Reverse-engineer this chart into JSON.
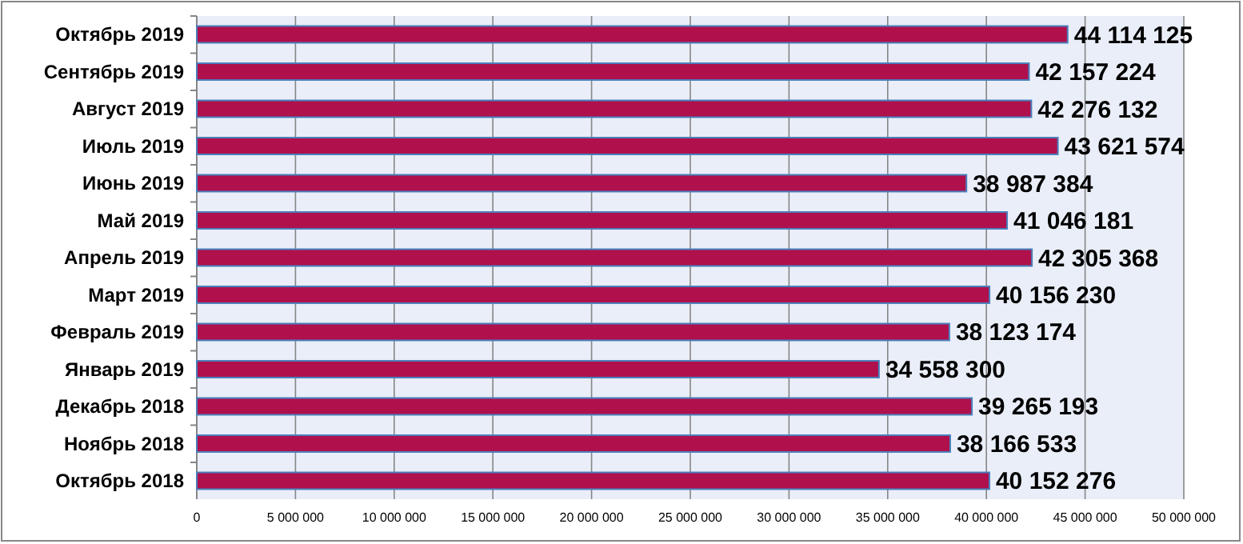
{
  "chart_data": {
    "type": "bar",
    "orientation": "horizontal",
    "categories": [
      "Октябрь 2019",
      "Сентябрь 2019",
      "Август 2019",
      "Июль 2019",
      "Июнь 2019",
      "Май 2019",
      "Апрель 2019",
      "Март 2019",
      "Февраль 2019",
      "Январь 2019",
      "Декабрь 2018",
      "Ноябрь 2018",
      "Октябрь 2018"
    ],
    "values": [
      44114125,
      42157224,
      42276132,
      43621574,
      38987384,
      41046181,
      42305368,
      40156230,
      38123174,
      34558300,
      39265193,
      38166533,
      40152276
    ],
    "value_labels": [
      "44 114 125",
      "42 157 224",
      "42 276 132",
      "43 621 574",
      "38 987 384",
      "41 046 181",
      "42 305 368",
      "40 156 230",
      "38 123 174",
      "34 558 300",
      "39 265 193",
      "38 166 533",
      "40 152 276"
    ],
    "color": "#b0104c",
    "xlim": [
      0,
      50000000
    ],
    "xticks": [
      0,
      {
        "value": 5000000,
        "label": "5 000 000"
      },
      {
        "value": 10000000,
        "label": "10 000 000"
      },
      {
        "value": 15000000,
        "label": "15 000 000"
      },
      {
        "value": 20000000,
        "label": "20 000 000"
      },
      {
        "value": 25000000,
        "label": "25 000 000"
      },
      {
        "value": 30000000,
        "label": "30 000 000"
      },
      {
        "value": 35000000,
        "label": "35 000 000"
      },
      {
        "value": 40000000,
        "label": "40 000 000"
      },
      {
        "value": 45000000,
        "label": "45 000 000"
      },
      {
        "value": 50000000,
        "label": "50 000 000"
      }
    ],
    "grid": "x"
  }
}
